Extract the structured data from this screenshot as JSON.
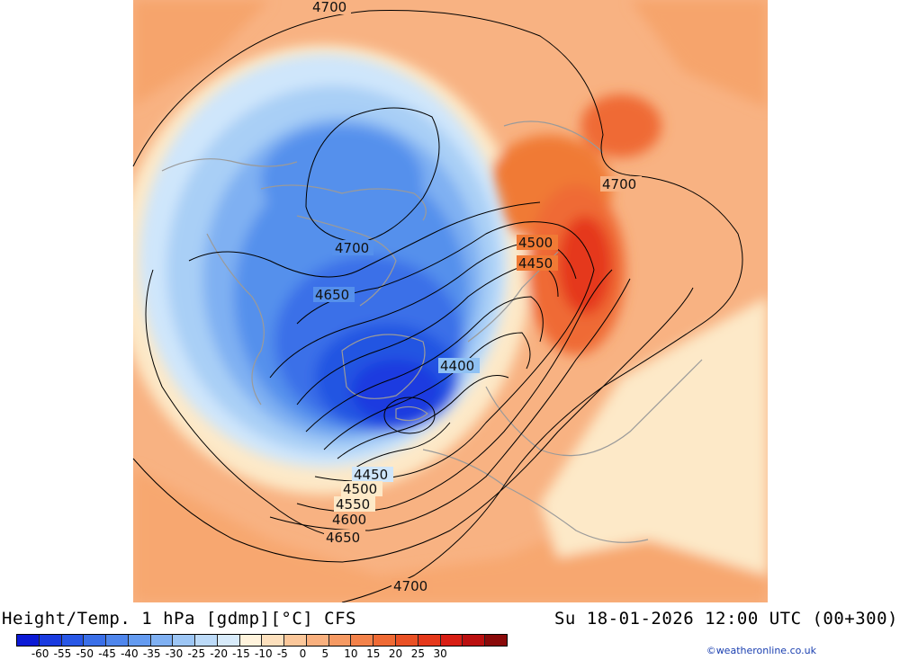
{
  "map": {
    "contour_labels": [
      "4700",
      "4700",
      "4700",
      "4650",
      "4500",
      "4450",
      "4400",
      "4450",
      "4500",
      "4550",
      "4600",
      "4650",
      "4700"
    ],
    "colors": {
      "deep_blue": "#1e3fd6",
      "mid_blue": "#3a6fe8",
      "light_blue": "#8fc1f3",
      "pale_blue": "#cfe6fb",
      "cream": "#fde9c8",
      "light_orange": "#fbc79a",
      "orange": "#f6a46c",
      "dark_orange": "#f07a35",
      "red": "#e8251b",
      "coastline": "#9a9a9a",
      "contour": "#000000"
    }
  },
  "footer": {
    "title": "Height/Temp. 1 hPa [gdmp][°C] CFS",
    "valid_time": "Su 18-01-2026 12:00 UTC (00+300)",
    "credit": "©weatheronline.co.uk"
  },
  "legend": {
    "colors": [
      "#0c1ad6",
      "#1a3be0",
      "#2857e6",
      "#3a6fe8",
      "#4f86ec",
      "#649bf0",
      "#7fb0f2",
      "#9dc6f5",
      "#bcdaf8",
      "#d8ebfb",
      "#fff3dc",
      "#fde0bd",
      "#fbc79a",
      "#f9b07e",
      "#f69a63",
      "#f3824a",
      "#ef6a34",
      "#ea5125",
      "#e5381b",
      "#d81e14",
      "#bb1010",
      "#8a0a0a"
    ],
    "tick_labels": [
      "-60",
      "-55",
      "-50",
      "-45",
      "-40",
      "-35",
      "-30",
      "-25",
      "-20",
      "-15",
      "-10",
      "-5",
      "0",
      "5",
      "10",
      "15",
      "20",
      "25",
      "30"
    ]
  }
}
